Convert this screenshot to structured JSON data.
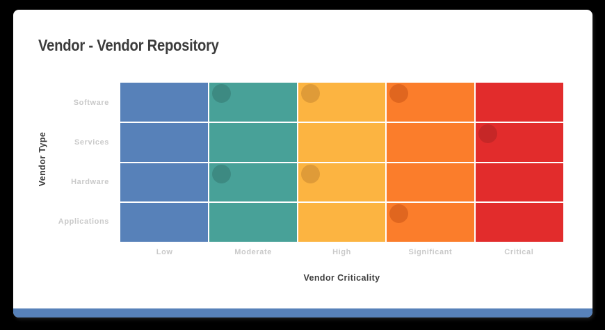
{
  "card": {
    "accent_color": "#5781b9",
    "background": "#ffffff"
  },
  "chart_data": {
    "type": "heatmap",
    "title": "Vendor - Vendor Repository",
    "xlabel": "Vendor Criticality",
    "ylabel": "Vendor Type",
    "x_categories": [
      "Low",
      "Moderate",
      "High",
      "Significant",
      "Critical"
    ],
    "y_categories": [
      "Software",
      "Services",
      "Hardware",
      "Applications"
    ],
    "grid": "4 rows x 5 columns, cells colored by column (criticality level), 2px white gutters",
    "legend_position": "none",
    "column_colors": [
      "#5781b9",
      "#48a198",
      "#fcb441",
      "#fb7d2b",
      "#e22c2c"
    ],
    "dot_colors": {
      "Low": "#4a6f9e",
      "Moderate": "#3d8a82",
      "High": "#df9b38",
      "Significant": "#e0661f",
      "Critical": "#c62727"
    },
    "points": [
      {
        "x": "Moderate",
        "y": "Software"
      },
      {
        "x": "High",
        "y": "Software"
      },
      {
        "x": "Significant",
        "y": "Software"
      },
      {
        "x": "Critical",
        "y": "Services"
      },
      {
        "x": "Moderate",
        "y": "Hardware"
      },
      {
        "x": "High",
        "y": "Hardware"
      },
      {
        "x": "Significant",
        "y": "Applications"
      }
    ],
    "text_colors": {
      "title": "#3b3b3b",
      "axis_title": "#3d3d3d",
      "tick_label": "#c9c9c9"
    }
  }
}
